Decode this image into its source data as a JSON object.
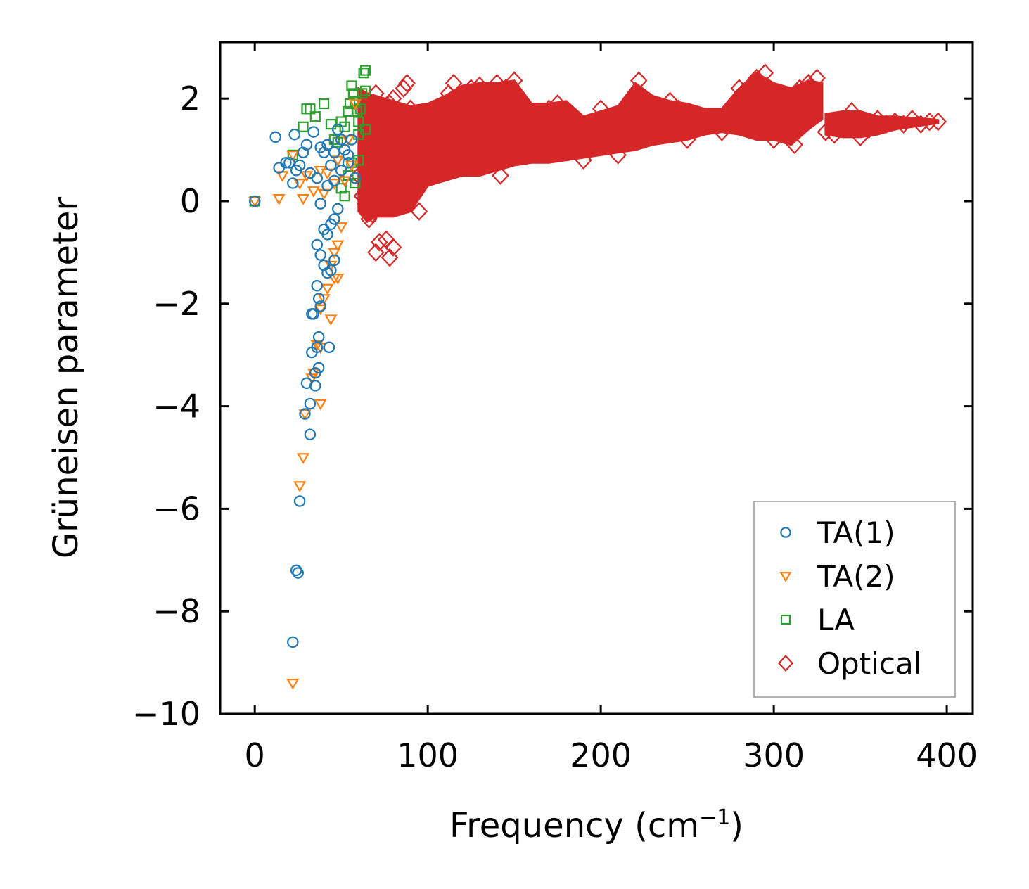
{
  "chart_data": {
    "type": "scatter",
    "title": "",
    "xlabel": "Frequency (cm",
    "xlabel_sup": "−1",
    "xlabel_tail": ")",
    "ylabel": "Grüneisen parameter",
    "xlim": [
      -20,
      415
    ],
    "ylim": [
      -10,
      3.1
    ],
    "xticks": [
      0,
      100,
      200,
      300,
      400
    ],
    "xtick_labels": [
      "0",
      "100",
      "200",
      "300",
      "400"
    ],
    "yticks": [
      -10,
      -8,
      -6,
      -4,
      -2,
      0,
      2
    ],
    "ytick_labels": [
      "−10",
      "−8",
      "−6",
      "−4",
      "−2",
      "0",
      "2"
    ],
    "grid": false,
    "legend_position": "lower-right",
    "series": [
      {
        "name": "TA(1)",
        "marker": "circle",
        "color": "#1f77b4",
        "points": [
          [
            0,
            0
          ],
          [
            12,
            1.25
          ],
          [
            14,
            0.65
          ],
          [
            18,
            0.75
          ],
          [
            20,
            0.75
          ],
          [
            22,
            0.35
          ],
          [
            23,
            1.3
          ],
          [
            24,
            0.6
          ],
          [
            26,
            0.7
          ],
          [
            28,
            0.95
          ],
          [
            30,
            1.1
          ],
          [
            32,
            0.55
          ],
          [
            34,
            1.35
          ],
          [
            36,
            0.45
          ],
          [
            38,
            1.05
          ],
          [
            40,
            0.95
          ],
          [
            42,
            0.3
          ],
          [
            44,
            0.7
          ],
          [
            46,
            0.95
          ],
          [
            48,
            1.4
          ],
          [
            50,
            0.6
          ],
          [
            52,
            1.0
          ],
          [
            54,
            0.75
          ],
          [
            56,
            1.2
          ],
          [
            58,
            0.45
          ],
          [
            42,
            1.1
          ],
          [
            46,
            0.4
          ],
          [
            50,
            1.2
          ],
          [
            54,
            0.9
          ],
          [
            38,
            -0.05
          ],
          [
            40,
            -0.55
          ],
          [
            42,
            -0.65
          ],
          [
            44,
            -0.45
          ],
          [
            46,
            -0.35
          ],
          [
            48,
            -0.15
          ],
          [
            36,
            -0.85
          ],
          [
            38,
            -1.05
          ],
          [
            40,
            -1.25
          ],
          [
            42,
            -1.4
          ],
          [
            44,
            -1.35
          ],
          [
            46,
            -1.15
          ],
          [
            36,
            -1.65
          ],
          [
            37,
            -1.9
          ],
          [
            34,
            -2.2
          ],
          [
            33,
            -2.2
          ],
          [
            38,
            -2.05
          ],
          [
            36,
            -2.85
          ],
          [
            37,
            -2.65
          ],
          [
            43,
            -2.85
          ],
          [
            33,
            -2.95
          ],
          [
            35,
            -3.35
          ],
          [
            37,
            -3.25
          ],
          [
            30,
            -3.55
          ],
          [
            35,
            -3.6
          ],
          [
            32,
            -3.95
          ],
          [
            29,
            -4.15
          ],
          [
            32,
            -4.55
          ],
          [
            26,
            -5.85
          ],
          [
            24,
            -7.2
          ],
          [
            25,
            -7.25
          ],
          [
            22,
            -8.6
          ]
        ]
      },
      {
        "name": "TA(2)",
        "marker": "triangle-down",
        "color": "#ff7f0e",
        "points": [
          [
            0,
            0
          ],
          [
            14,
            0.05
          ],
          [
            16,
            0.5
          ],
          [
            22,
            0.9
          ],
          [
            26,
            0.35
          ],
          [
            28,
            0.05
          ],
          [
            30,
            0.5
          ],
          [
            34,
            0.2
          ],
          [
            38,
            0.6
          ],
          [
            40,
            0.15
          ],
          [
            42,
            0.55
          ],
          [
            46,
            0.35
          ],
          [
            48,
            0.8
          ],
          [
            52,
            0.4
          ],
          [
            54,
            1.2
          ],
          [
            56,
            0.7
          ],
          [
            58,
            1.9
          ],
          [
            50,
            -0.5
          ],
          [
            48,
            -0.85
          ],
          [
            46,
            -1.0
          ],
          [
            44,
            -1.25
          ],
          [
            42,
            -1.7
          ],
          [
            40,
            -1.9
          ],
          [
            38,
            -2.1
          ],
          [
            44,
            -2.3
          ],
          [
            46,
            -1.5
          ],
          [
            48,
            -1.5
          ],
          [
            36,
            -2.8
          ],
          [
            38,
            -2.85
          ],
          [
            34,
            -3.35
          ],
          [
            33,
            -3.45
          ],
          [
            38,
            -3.95
          ],
          [
            29,
            -4.15
          ],
          [
            28,
            -5.0
          ],
          [
            26,
            -5.55
          ],
          [
            22,
            -9.4
          ]
        ]
      },
      {
        "name": "LA",
        "marker": "square",
        "color": "#2ca02c",
        "points": [
          [
            0,
            0
          ],
          [
            22,
            0.9
          ],
          [
            28,
            1.45
          ],
          [
            30,
            1.8
          ],
          [
            32,
            1.8
          ],
          [
            35,
            1.65
          ],
          [
            40,
            1.9
          ],
          [
            44,
            1.5
          ],
          [
            46,
            1.2
          ],
          [
            48,
            1.15
          ],
          [
            50,
            1.55
          ],
          [
            52,
            1.45
          ],
          [
            54,
            1.75
          ],
          [
            55,
            1.9
          ],
          [
            56,
            2.25
          ],
          [
            57,
            2.1
          ],
          [
            58,
            1.95
          ],
          [
            59,
            1.75
          ],
          [
            60,
            1.55
          ],
          [
            61,
            1.8
          ],
          [
            62,
            2.1
          ],
          [
            63,
            2.5
          ],
          [
            64,
            2.55
          ],
          [
            64,
            2.15
          ],
          [
            64,
            1.4
          ],
          [
            50,
            0.25
          ],
          [
            52,
            0.1
          ],
          [
            54,
            0.5
          ],
          [
            56,
            0.75
          ],
          [
            60,
            1.3
          ],
          [
            58,
            0.35
          ],
          [
            60,
            0.8
          ]
        ]
      },
      {
        "name": "Optical",
        "marker": "diamond",
        "color": "#d62728",
        "points": [
          [
            60,
            0.5
          ],
          [
            62,
            0.1
          ],
          [
            64,
            -0.05
          ],
          [
            66,
            0.9
          ],
          [
            68,
            1.6
          ],
          [
            70,
            2.1
          ],
          [
            72,
            1.2
          ],
          [
            74,
            0.4
          ],
          [
            76,
            -0.1
          ],
          [
            78,
            1.9
          ],
          [
            80,
            2.0
          ],
          [
            82,
            1.7
          ],
          [
            84,
            0.9
          ],
          [
            86,
            2.2
          ],
          [
            88,
            2.3
          ],
          [
            90,
            1.8
          ],
          [
            92,
            1.2
          ],
          [
            94,
            0.3
          ],
          [
            95,
            -0.2
          ],
          [
            70,
            -1.0
          ],
          [
            72,
            -0.8
          ],
          [
            76,
            -0.75
          ],
          [
            78,
            -1.1
          ],
          [
            80,
            -0.9
          ],
          [
            66,
            -0.35
          ],
          [
            68,
            -0.25
          ],
          [
            100,
            0.9
          ],
          [
            105,
            1.3
          ],
          [
            110,
            1.6
          ],
          [
            112,
            2.1
          ],
          [
            115,
            2.3
          ],
          [
            120,
            1.8
          ],
          [
            125,
            2.2
          ],
          [
            130,
            2.25
          ],
          [
            135,
            1.6
          ],
          [
            140,
            2.3
          ],
          [
            142,
            0.5
          ],
          [
            145,
            2.2
          ],
          [
            150,
            2.35
          ],
          [
            155,
            1.0
          ],
          [
            160,
            1.7
          ],
          [
            165,
            1.3
          ],
          [
            170,
            1.8
          ],
          [
            175,
            1.9
          ],
          [
            180,
            1.2
          ],
          [
            185,
            1.5
          ],
          [
            190,
            0.8
          ],
          [
            195,
            1.3
          ],
          [
            200,
            1.8
          ],
          [
            205,
            1.5
          ],
          [
            210,
            0.9
          ],
          [
            215,
            1.4
          ],
          [
            220,
            1.7
          ],
          [
            222,
            2.35
          ],
          [
            225,
            1.2
          ],
          [
            230,
            1.6
          ],
          [
            235,
            1.4
          ],
          [
            240,
            1.95
          ],
          [
            245,
            1.8
          ],
          [
            250,
            1.2
          ],
          [
            255,
            1.6
          ],
          [
            260,
            1.45
          ],
          [
            265,
            1.5
          ],
          [
            270,
            1.35
          ],
          [
            275,
            1.7
          ],
          [
            280,
            2.2
          ],
          [
            285,
            1.9
          ],
          [
            290,
            2.4
          ],
          [
            295,
            2.5
          ],
          [
            300,
            1.2
          ],
          [
            305,
            1.5
          ],
          [
            310,
            1.35
          ],
          [
            312,
            1.1
          ],
          [
            315,
            2.2
          ],
          [
            320,
            2.3
          ],
          [
            325,
            2.4
          ],
          [
            330,
            1.35
          ],
          [
            335,
            1.3
          ],
          [
            340,
            1.5
          ],
          [
            345,
            1.75
          ],
          [
            350,
            1.25
          ],
          [
            355,
            1.4
          ],
          [
            360,
            1.6
          ],
          [
            365,
            1.5
          ],
          [
            370,
            1.55
          ],
          [
            375,
            1.5
          ],
          [
            380,
            1.6
          ],
          [
            385,
            1.5
          ],
          [
            390,
            1.55
          ],
          [
            395,
            1.55
          ]
        ]
      }
    ],
    "optical_band": {
      "x": [
        60,
        65,
        70,
        80,
        90,
        100,
        110,
        120,
        130,
        140,
        150,
        160,
        170,
        180,
        190,
        200,
        210,
        220,
        230,
        240,
        250,
        260,
        270,
        280,
        290,
        300,
        310,
        320,
        328
      ],
      "upper": [
        2.2,
        2.1,
        2.05,
        1.95,
        1.85,
        1.9,
        2.05,
        2.25,
        2.3,
        2.3,
        2.35,
        1.9,
        1.9,
        1.95,
        1.65,
        1.75,
        1.85,
        2.3,
        2.05,
        1.95,
        1.9,
        1.8,
        1.8,
        2.2,
        2.5,
        2.3,
        2.2,
        2.35,
        2.3
      ],
      "lower": [
        -0.2,
        -0.4,
        -0.3,
        -0.3,
        -0.2,
        0.3,
        0.4,
        0.5,
        0.5,
        0.6,
        0.7,
        0.75,
        0.75,
        0.8,
        0.85,
        0.9,
        0.95,
        1.0,
        1.1,
        1.15,
        1.2,
        1.3,
        1.35,
        1.3,
        1.2,
        1.2,
        1.1,
        1.4,
        1.6
      ],
      "x2": [
        330,
        340,
        350,
        360,
        370,
        380,
        390,
        395
      ],
      "upper2": [
        1.7,
        1.75,
        1.75,
        1.65,
        1.65,
        1.62,
        1.6,
        1.58
      ],
      "lower2": [
        1.3,
        1.25,
        1.25,
        1.3,
        1.4,
        1.45,
        1.5,
        1.52
      ]
    }
  }
}
